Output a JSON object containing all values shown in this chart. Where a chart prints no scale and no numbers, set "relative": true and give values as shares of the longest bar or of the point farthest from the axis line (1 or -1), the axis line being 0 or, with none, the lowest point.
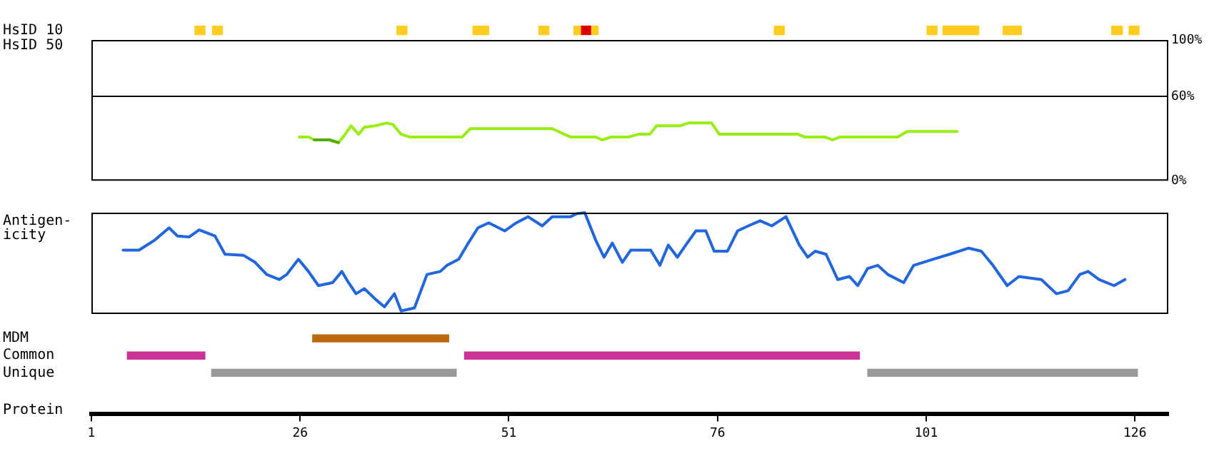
{
  "chart_data": [
    {
      "type": "bar",
      "orientation": "horizontal",
      "categories": [
        "HsID 10",
        "HsID 50"
      ],
      "xticks": [
        1,
        26,
        51,
        76,
        101,
        126
      ],
      "tick_labels": "y",
      "series": [
        {
          "color": "#ffcc22",
          "base": [
            13.4,
            null
          ],
          "values": [
            1.2,
            null
          ]
        },
        {
          "color": "#ffcc22",
          "base": [
            15.5,
            null
          ],
          "values": [
            1.2,
            null
          ]
        },
        {
          "color": "#ffcc22",
          "base": [
            37.6,
            null
          ],
          "values": [
            1.2,
            null
          ]
        },
        {
          "color": "#ffcc22",
          "base": [
            46.7,
            null
          ],
          "values": [
            1.9,
            null
          ]
        },
        {
          "color": "#ffcc22",
          "base": [
            54.6,
            null
          ],
          "values": [
            1.2,
            null
          ]
        },
        {
          "color": "#ffcc22",
          "base": [
            58.8,
            null
          ],
          "values": [
            0.8,
            null
          ]
        },
        {
          "color": "#dd0000",
          "base": [
            59.6,
            null
          ],
          "values": [
            1.2,
            null
          ]
        },
        {
          "color": "#ffcc22",
          "base": [
            60.8,
            null
          ],
          "values": [
            0.9,
            null
          ]
        },
        {
          "color": "#ffcc22",
          "base": [
            82.8,
            null
          ],
          "values": [
            1.2,
            null
          ]
        },
        {
          "color": "#ffcc22",
          "base": [
            101.1,
            null
          ],
          "values": [
            1.2,
            null
          ]
        },
        {
          "color": "#ffcc22",
          "base": [
            103.0,
            null
          ],
          "values": [
            4.3,
            null
          ]
        },
        {
          "color": "#ffcc22",
          "base": [
            110.2,
            null
          ],
          "values": [
            2.2,
            null
          ]
        },
        {
          "color": "#ffcc22",
          "base": [
            123.2,
            null
          ],
          "values": [
            1.3,
            null
          ]
        },
        {
          "color": "#ffcc22",
          "base": [
            125.3,
            null
          ],
          "values": [
            1.2,
            null
          ]
        }
      ]
    },
    {
      "type": "line",
      "xlim": [
        1,
        130
      ],
      "ylim": [
        0,
        100
      ],
      "yticks": [
        {
          "value": 0,
          "label": "0%"
        },
        {
          "value": 60,
          "label": "60%"
        },
        {
          "value": 100,
          "label": "100%"
        }
      ],
      "tick_labels": "y",
      "marker": "none",
      "ref_lines": [
        {
          "axis": "y",
          "value": 60,
          "color": "#000000"
        }
      ],
      "series": [
        {
          "color": "#99ee11",
          "x": [
            25.9,
            27,
            27.7,
            29.5,
            30.6,
            31.4,
            32.1,
            33,
            33.7,
            35,
            36.4,
            37.1,
            38.1,
            39.2,
            45.4,
            46.4,
            56.2,
            58.4,
            61.4,
            62.2,
            63.2,
            65.3,
            66.5,
            67.9,
            68.7,
            71.5,
            72.5,
            75.3,
            76.2,
            85.6,
            86.5,
            88.9,
            89.8,
            90.6,
            97.6,
            98.7,
            104.7
          ],
          "values": [
            31,
            31,
            29,
            29,
            27,
            33,
            39,
            33,
            38,
            39,
            41,
            40,
            33,
            31,
            31,
            37,
            37,
            31,
            31,
            29,
            31,
            31,
            33,
            33,
            39,
            39,
            41,
            41,
            33,
            33,
            31,
            31,
            29,
            31,
            31,
            35,
            35
          ]
        },
        {
          "color": "#55aa00",
          "x": [
            27.7,
            29.5,
            30.6
          ],
          "values": [
            29,
            29,
            27
          ]
        }
      ]
    },
    {
      "type": "line",
      "relative": true,
      "tick_labels": false,
      "xlim": [
        1,
        130
      ],
      "ylabel": "Antigen-\nicity",
      "marker": "none",
      "series": [
        {
          "color": "#2266dd",
          "x": [
            4.8,
            6.7,
            8.6,
            10.3,
            11.3,
            12.7,
            13.9,
            15.8,
            17,
            19.2,
            20.6,
            22,
            23.5,
            24.4,
            25.8,
            27,
            28.2,
            29.9,
            31,
            31.8,
            32.7,
            33.7,
            35.1,
            36.1,
            37.3,
            38.1,
            39.7,
            41.2,
            42.8,
            43.6,
            45,
            46,
            47.3,
            48.6,
            50.5,
            51.9,
            53.3,
            55,
            56.2,
            58.4,
            59.1,
            60.1,
            61.4,
            62.4,
            63.4,
            64.6,
            65.6,
            68,
            69.1,
            70.1,
            71.2,
            72.2,
            73.4,
            74.6,
            75.6,
            77.2,
            78.4,
            79.7,
            81.1,
            82.5,
            84.2,
            85.8,
            86.8,
            87.7,
            89,
            90.4,
            91.8,
            92.8,
            94,
            95.2,
            96.4,
            98.3,
            99.5,
            101.8,
            103.8,
            106.1,
            107.6,
            109,
            110.7,
            112.1,
            114.8,
            116.6,
            118,
            119.4,
            120.4,
            121.7,
            123.5,
            124.8
          ],
          "values": [
            0.63,
            0.63,
            0.73,
            0.85,
            0.77,
            0.76,
            0.83,
            0.77,
            0.59,
            0.58,
            0.51,
            0.39,
            0.34,
            0.39,
            0.54,
            0.42,
            0.28,
            0.31,
            0.42,
            0.31,
            0.2,
            0.25,
            0.14,
            0.07,
            0.2,
            0.03,
            0.06,
            0.39,
            0.42,
            0.48,
            0.54,
            0.68,
            0.85,
            0.9,
            0.82,
            0.9,
            0.96,
            0.87,
            0.96,
            0.96,
            0.99,
            1,
            0.73,
            0.56,
            0.7,
            0.51,
            0.63,
            0.63,
            0.48,
            0.68,
            0.56,
            0.68,
            0.82,
            0.82,
            0.62,
            0.62,
            0.82,
            0.87,
            0.92,
            0.87,
            0.96,
            0.68,
            0.56,
            0.62,
            0.59,
            0.34,
            0.37,
            0.28,
            0.45,
            0.48,
            0.39,
            0.31,
            0.48,
            0.54,
            0.59,
            0.65,
            0.62,
            0.48,
            0.28,
            0.37,
            0.34,
            0.2,
            0.23,
            0.39,
            0.42,
            0.34,
            0.28,
            0.34
          ]
        }
      ]
    },
    {
      "type": "bar",
      "orientation": "horizontal",
      "categories": [
        "MDM",
        "Common",
        "Unique"
      ],
      "xlabel": "Protein",
      "xlim": [
        1,
        130
      ],
      "xticks": [
        1,
        26,
        51,
        76,
        101,
        126
      ],
      "series": [
        {
          "color": "#bb6a10",
          "base": [
            27.5,
            null,
            null
          ],
          "values": [
            16.3,
            null,
            null
          ]
        },
        {
          "color": "#cc3399",
          "base": [
            null,
            5.3,
            null
          ],
          "values": [
            null,
            9.3,
            null
          ]
        },
        {
          "color": "#cc3399",
          "base": [
            null,
            45.7,
            null
          ],
          "values": [
            null,
            47.3,
            null
          ]
        },
        {
          "color": "#999999",
          "base": [
            null,
            null,
            15.4
          ],
          "values": [
            null,
            null,
            29.3
          ]
        },
        {
          "color": "#999999",
          "base": [
            null,
            null,
            94.0
          ],
          "values": [
            null,
            null,
            32.3
          ]
        }
      ]
    }
  ]
}
